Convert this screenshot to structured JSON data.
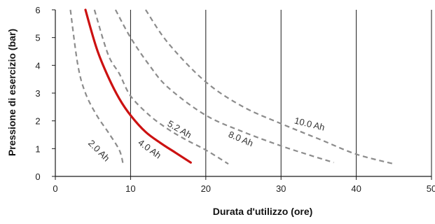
{
  "chart_data": {
    "type": "line",
    "xlabel": "Durata d'utilizzo (ore)",
    "ylabel": "Pressione di esercizio (bar)",
    "xlim": [
      0,
      50
    ],
    "ylim": [
      0,
      6
    ],
    "x_ticks": [
      "0",
      "10",
      "20",
      "30",
      "40",
      "50"
    ],
    "y_ticks": [
      "0",
      "1",
      "2",
      "3",
      "4",
      "5",
      "6"
    ],
    "grid": "vertical lines only",
    "series": [
      {
        "name": "2.0 Ah",
        "style": "dashed",
        "color": "#8c8c8c",
        "points": [
          [
            2.0,
            6.0
          ],
          [
            3.0,
            4.0
          ],
          [
            4.0,
            3.0
          ],
          [
            5.5,
            2.2
          ],
          [
            7.0,
            1.6
          ],
          [
            8.5,
            0.95
          ],
          [
            9.0,
            0.45
          ]
        ]
      },
      {
        "name": "4.0 Ah",
        "style": "solid",
        "color": "#cc1111",
        "points": [
          [
            4.0,
            6.0
          ],
          [
            5.5,
            4.6
          ],
          [
            7.0,
            3.6
          ],
          [
            8.5,
            2.8
          ],
          [
            10.0,
            2.2
          ],
          [
            12.0,
            1.6
          ],
          [
            14.0,
            1.2
          ],
          [
            16.0,
            0.85
          ],
          [
            18.0,
            0.5
          ]
        ]
      },
      {
        "name": "5.2 Ah",
        "style": "dashed",
        "color": "#8c8c8c",
        "points": [
          [
            5.2,
            6.0
          ],
          [
            7.0,
            4.4
          ],
          [
            8.5,
            3.7
          ],
          [
            10.0,
            2.9
          ],
          [
            12.5,
            2.2
          ],
          [
            15.0,
            1.7
          ],
          [
            17.5,
            1.3
          ],
          [
            20.0,
            0.95
          ],
          [
            23.0,
            0.45
          ]
        ]
      },
      {
        "name": "8.0 Ah",
        "style": "dashed",
        "color": "#8c8c8c",
        "points": [
          [
            8.0,
            6.0
          ],
          [
            10.0,
            5.0
          ],
          [
            12.5,
            4.0
          ],
          [
            15.0,
            3.2
          ],
          [
            20.0,
            2.2
          ],
          [
            25.0,
            1.6
          ],
          [
            30.0,
            1.1
          ],
          [
            34.0,
            0.75
          ],
          [
            37.0,
            0.5
          ]
        ]
      },
      {
        "name": "10.0 Ah",
        "style": "dashed",
        "color": "#8c8c8c",
        "points": [
          [
            12.0,
            6.0
          ],
          [
            15.0,
            4.8
          ],
          [
            20.0,
            3.4
          ],
          [
            25.0,
            2.5
          ],
          [
            30.0,
            1.9
          ],
          [
            35.0,
            1.35
          ],
          [
            40.0,
            0.8
          ],
          [
            45.0,
            0.45
          ]
        ]
      }
    ]
  }
}
